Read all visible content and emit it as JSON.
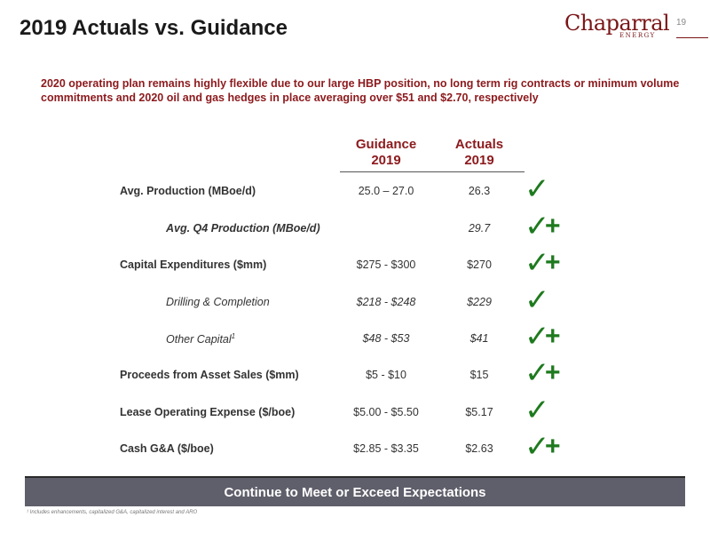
{
  "slide": {
    "title": "2019 Actuals vs. Guidance",
    "page_number": "19",
    "logo_main": "Chaparral",
    "logo_sub": "ENERGY",
    "subtitle": "2020 operating plan remains highly flexible due to our large HBP position, no long term rig contracts or minimum volume commitments and 2020 oil and gas hedges in place averaging over $51 and $2.70, respectively",
    "banner": "Continue to Meet or Exceed Expectations",
    "footnote": "¹ Includes enhancements, capitalized G&A, capitalized interest and ARO"
  },
  "table": {
    "headers": {
      "guidance_line1": "Guidance",
      "guidance_line2": "2019",
      "actuals_line1": "Actuals",
      "actuals_line2": "2019"
    },
    "rows": [
      {
        "label": "Avg. Production (MBoe/d)",
        "guidance": "25.0 – 27.0",
        "actual": "26.3",
        "status": "check"
      },
      {
        "label": "Avg. Q4 Production (MBoe/d)",
        "guidance": "",
        "actual": "29.7",
        "status": "check-plus"
      },
      {
        "label": "Capital Expenditures ($mm)",
        "guidance": "$275 - $300",
        "actual": "$270",
        "status": "check-plus"
      },
      {
        "label": "Drilling & Completion",
        "guidance": "$218 - $248",
        "actual": "$229",
        "status": "check"
      },
      {
        "label": "Other Capital",
        "label_sup": "1",
        "guidance": "$48 - $53",
        "actual": "$41",
        "status": "check-plus"
      },
      {
        "label": "Proceeds from Asset Sales ($mm)",
        "guidance": "$5 - $10",
        "actual": "$15",
        "status": "check-plus"
      },
      {
        "label": "Lease Operating Expense ($/boe)",
        "guidance": "$5.00 - $5.50",
        "actual": "$5.17",
        "status": "check"
      },
      {
        "label": "Cash G&A ($/boe)",
        "guidance": "$2.85 - $3.35",
        "actual": "$2.63",
        "status": "check-plus"
      }
    ]
  },
  "colors": {
    "accent": "#8c1a1d",
    "check": "#1e7a1e",
    "banner": "#5f5f6b"
  },
  "icons": {
    "check": "checkmark-icon",
    "plus": "plus-icon"
  }
}
